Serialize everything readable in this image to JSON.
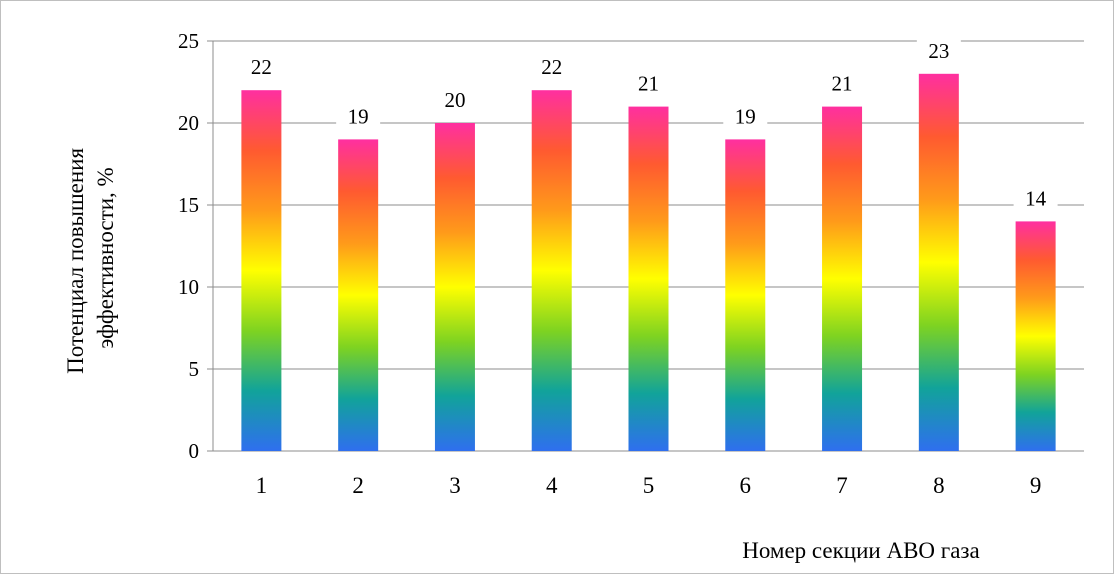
{
  "chart_data": {
    "type": "bar",
    "title": "",
    "xlabel": "Номер секции АВО газа",
    "ylabel_lines": [
      "Потенциал повышения",
      "эффективности, %"
    ],
    "categories": [
      "1",
      "2",
      "3",
      "4",
      "5",
      "6",
      "7",
      "8",
      "9"
    ],
    "values": [
      22,
      19,
      20,
      22,
      21,
      19,
      21,
      23,
      14
    ],
    "data_labels": [
      "22",
      "19",
      "20",
      "22",
      "21",
      "19",
      "21",
      "23",
      "14"
    ],
    "ylim": [
      0,
      25
    ],
    "yticks": [
      0,
      5,
      10,
      15,
      20,
      25
    ],
    "grid": true,
    "legend": "none",
    "gradient_colors": [
      "#2f6fef",
      "#11a39a",
      "#7ed321",
      "#ffff00",
      "#ff9a1a",
      "#ff5a30",
      "#ff2fa0"
    ]
  }
}
